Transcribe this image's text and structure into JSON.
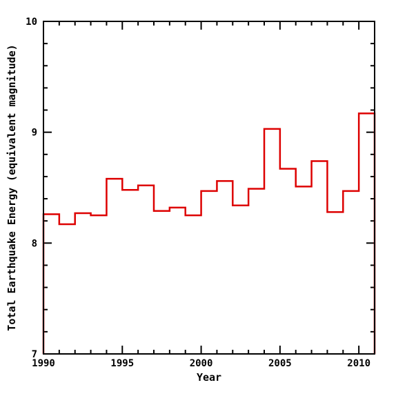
{
  "chart_data": {
    "type": "line",
    "style": "step",
    "xlabel": "Year",
    "ylabel": "Total Earthquake Energy (equivalent magnitude)",
    "xlim": [
      1990,
      2011
    ],
    "ylim": [
      7,
      10
    ],
    "x_ticks": [
      "1990",
      "1995",
      "2000",
      "2005",
      "2010"
    ],
    "y_ticks": [
      "7",
      "8",
      "9",
      "10"
    ],
    "series": [
      {
        "color": "#dd0000",
        "years": [
          1990,
          1991,
          1992,
          1993,
          1994,
          1995,
          1996,
          1997,
          1998,
          1999,
          2000,
          2001,
          2002,
          2003,
          2004,
          2005,
          2006,
          2007,
          2008,
          2009,
          2010
        ],
        "values": [
          8.26,
          8.17,
          8.27,
          8.25,
          8.58,
          8.48,
          8.52,
          8.29,
          8.32,
          8.25,
          8.47,
          8.56,
          8.34,
          8.49,
          9.03,
          8.67,
          8.51,
          8.74,
          8.28,
          8.47,
          9.17
        ]
      }
    ]
  }
}
